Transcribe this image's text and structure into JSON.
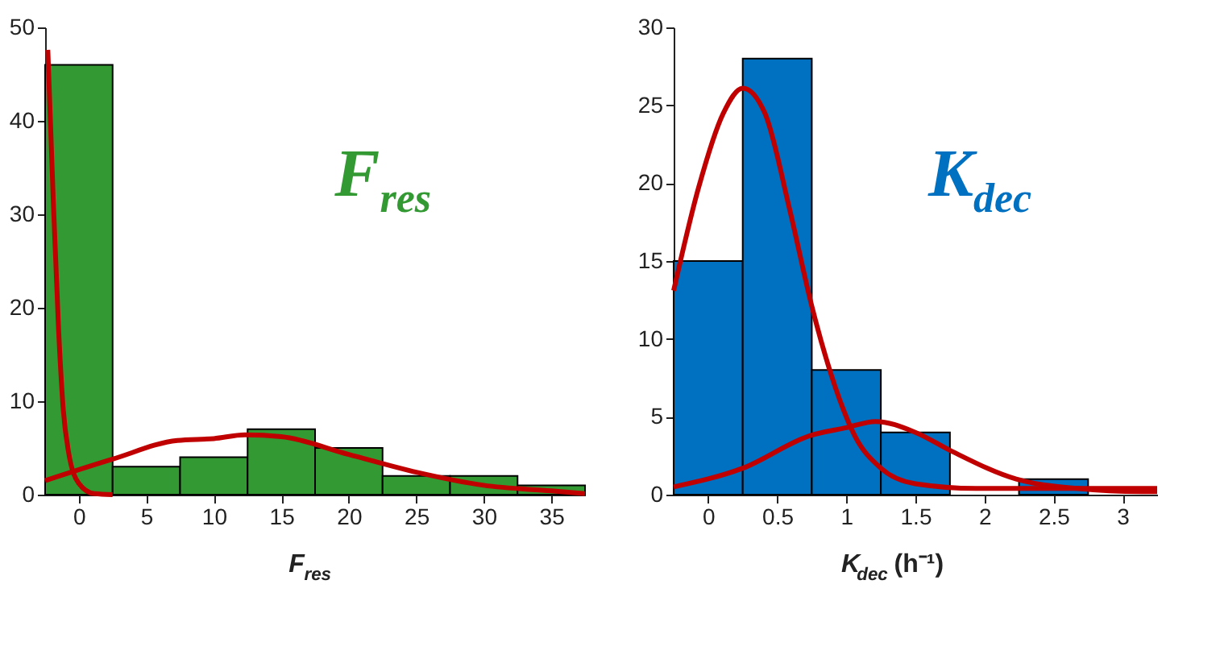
{
  "chart_data": [
    {
      "type": "histogram",
      "xlabel": "F$_{res}$",
      "annotations": [
        "F$_{res}$"
      ],
      "bins": [
        -2.5,
        2.5,
        7.5,
        12.5,
        17.5,
        22.5,
        27.5,
        32.5,
        37.5
      ],
      "values": [
        46,
        3,
        4,
        7,
        5,
        2,
        2,
        1
      ],
      "color": "#339933",
      "xlim": [
        -2.5,
        37.5
      ],
      "xticks": [
        0,
        5,
        10,
        15,
        20,
        25,
        30,
        35
      ],
      "ylim": [
        0,
        50
      ],
      "yticks": [
        0,
        10,
        20,
        30,
        40,
        50
      ],
      "grid": false,
      "series": [
        {
          "type": "line",
          "color": "#c00000",
          "x": [
            -2.3,
            -1.9,
            -1.5,
            -1.15,
            -0.77,
            0,
            1.15,
            2.5
          ],
          "values": [
            47.6,
            31.7,
            17.6,
            9,
            4.6,
            1.2,
            0.1,
            0
          ]
        },
        {
          "type": "line",
          "color": "#c00000",
          "x": [
            -2.5,
            2.5,
            7.3,
            10,
            12.3,
            15,
            20,
            25,
            30,
            35,
            37.5
          ],
          "values": [
            1.5,
            3.8,
            5.8,
            6.0,
            6.4,
            6.2,
            4.3,
            2.4,
            1.0,
            0.4,
            0.1
          ]
        }
      ]
    },
    {
      "type": "histogram",
      "xlabel": "K$_{dec}$ (h⁻¹)",
      "annotations": [
        "K$_{dec}$"
      ],
      "bins": [
        -0.25,
        0.25,
        0.75,
        1.25,
        1.75,
        2.25,
        2.75,
        3.25
      ],
      "values": [
        15,
        28,
        8,
        4,
        0,
        1,
        0
      ],
      "color": "#0070c0",
      "xlim": [
        -0.25,
        3.25
      ],
      "xticks": [
        0,
        0.5,
        1,
        1.5,
        2,
        2.5,
        3
      ],
      "ylim": [
        0,
        30
      ],
      "yticks": [
        0,
        5,
        10,
        15,
        20,
        25,
        30
      ],
      "grid": false,
      "series": [
        {
          "type": "line",
          "color": "#c00000",
          "x": [
            -0.25,
            -0.07,
            0.11,
            0.25,
            0.41,
            0.59,
            0.75,
            0.92,
            1.06,
            1.25,
            1.5,
            1.94,
            3.14,
            3.25
          ],
          "values": [
            13.1,
            19.7,
            24.5,
            26.1,
            24.5,
            18.3,
            12.1,
            6.9,
            3.8,
            1.7,
            0.7,
            0.4,
            0.4,
            0.4
          ]
        },
        {
          "type": "line",
          "color": "#c00000",
          "x": [
            -0.25,
            0.25,
            0.74,
            1.0,
            1.21,
            1.5,
            1.76,
            2.23,
            2.67,
            3.14,
            3.25
          ],
          "values": [
            0.5,
            1.7,
            3.8,
            4.3,
            4.7,
            4.0,
            2.8,
            1.0,
            0.4,
            0.2,
            0.2
          ]
        }
      ]
    }
  ]
}
